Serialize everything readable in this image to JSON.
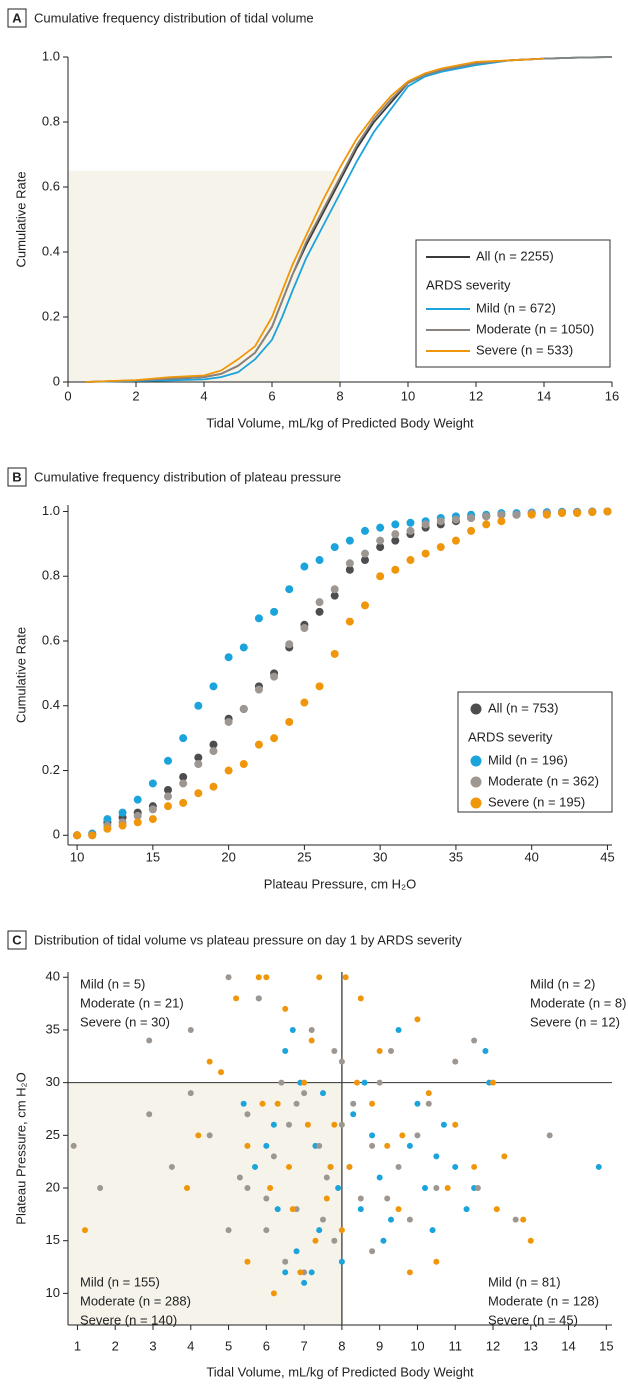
{
  "chart_data": [
    {
      "type": "line",
      "panel": "A",
      "title": "Cumulative frequency distribution of tidal volume",
      "x_label": "Tidal Volume, mL/kg of Predicted Body Weight",
      "y_label": "Cumulative Rate",
      "xlim": [
        0,
        16
      ],
      "ylim": [
        0,
        1
      ],
      "xticks": [
        0,
        2,
        4,
        6,
        8,
        10,
        12,
        14,
        16
      ],
      "yticks": [
        0,
        0.2,
        0.4,
        0.6,
        0.8,
        {
          "value": 1,
          "label": "1.0"
        }
      ],
      "shade": {
        "x": [
          0,
          8
        ],
        "y": [
          0,
          0.65
        ],
        "color": "#f6f3ea"
      },
      "legend": "lower right",
      "legend_title": "ARDS severity",
      "x": [
        0.5,
        2,
        3,
        4,
        4.5,
        5,
        5.5,
        6,
        6.3,
        6.6,
        7,
        7.5,
        8,
        8.5,
        9,
        9.5,
        10,
        10.5,
        11,
        12,
        13,
        14,
        15,
        16
      ],
      "series": [
        {
          "name": "All (n = 2255)",
          "color": "#3a3a3c",
          "values": [
            0,
            0.005,
            0.01,
            0.015,
            0.025,
            0.05,
            0.09,
            0.17,
            0.25,
            0.33,
            0.42,
            0.52,
            0.62,
            0.72,
            0.8,
            0.86,
            0.92,
            0.945,
            0.96,
            0.98,
            0.99,
            0.995,
            0.998,
            1
          ]
        },
        {
          "name": "Mild (n = 672)",
          "color": "#1ba3dc",
          "values": [
            0,
            0.003,
            0.005,
            0.008,
            0.015,
            0.03,
            0.07,
            0.13,
            0.2,
            0.28,
            0.38,
            0.48,
            0.58,
            0.68,
            0.77,
            0.84,
            0.91,
            0.94,
            0.955,
            0.975,
            0.99,
            0.995,
            0.998,
            1
          ]
        },
        {
          "name": "Moderate (n = 1050)",
          "color": "#8a837c",
          "values": [
            0,
            0.005,
            0.01,
            0.015,
            0.025,
            0.05,
            0.09,
            0.17,
            0.25,
            0.33,
            0.43,
            0.53,
            0.63,
            0.73,
            0.81,
            0.87,
            0.92,
            0.945,
            0.96,
            0.98,
            0.99,
            0.995,
            0.998,
            1
          ]
        },
        {
          "name": "Severe (n = 533)",
          "color": "#f0960a",
          "values": [
            0,
            0.006,
            0.015,
            0.02,
            0.035,
            0.07,
            0.11,
            0.2,
            0.28,
            0.36,
            0.45,
            0.56,
            0.66,
            0.75,
            0.82,
            0.88,
            0.925,
            0.95,
            0.965,
            0.985,
            0.99,
            0.995,
            null,
            null
          ]
        }
      ]
    },
    {
      "type": "scatter",
      "panel": "B",
      "title": "Cumulative frequency distribution of plateau pressure",
      "x_label": "Plateau Pressure, cm H₂O",
      "y_label": "Cumulative Rate",
      "xlim": [
        9.4,
        45.3
      ],
      "ylim": [
        -0.03,
        1.02
      ],
      "xticks": [
        10,
        15,
        20,
        25,
        30,
        35,
        40,
        45
      ],
      "yticks": [
        0,
        0.2,
        0.4,
        0.6,
        0.8,
        {
          "value": 1,
          "label": "1.0"
        }
      ],
      "legend": "lower right",
      "legend_title": "ARDS severity",
      "x": [
        10,
        11,
        12,
        13,
        14,
        15,
        16,
        17,
        18,
        19,
        20,
        21,
        22,
        23,
        24,
        25,
        26,
        27,
        28,
        29,
        30,
        31,
        32,
        33,
        34,
        35,
        36,
        37,
        38,
        39,
        40,
        41,
        42,
        43,
        44,
        45
      ],
      "series": [
        {
          "name": "All (n = 753)",
          "color": "#4d4d4f",
          "values": [
            0,
            0.005,
            0.04,
            0.055,
            0.07,
            0.09,
            0.14,
            0.18,
            0.24,
            0.28,
            0.36,
            0.39,
            0.46,
            0.5,
            0.58,
            0.65,
            0.69,
            0.74,
            0.82,
            0.85,
            0.89,
            0.91,
            0.93,
            0.95,
            0.96,
            0.97,
            0.98,
            0.985,
            0.99,
            0.99,
            0.995,
            0.995,
            0.997,
            0.998,
            0.999,
            1
          ]
        },
        {
          "name": "Mild (n = 196)",
          "color": "#1ba3dc",
          "values": [
            0,
            0.005,
            0.05,
            0.07,
            0.11,
            0.16,
            0.23,
            0.3,
            0.4,
            0.46,
            0.55,
            0.58,
            0.67,
            0.69,
            0.76,
            0.83,
            0.85,
            0.89,
            0.91,
            0.94,
            0.95,
            0.96,
            0.965,
            0.97,
            0.98,
            0.985,
            0.99,
            0.99,
            0.995,
            0.995,
            0.997,
            0.998,
            0.999,
            0.999,
            1,
            1
          ]
        },
        {
          "name": "Moderate (n = 362)",
          "color": "#9e9690",
          "values": [
            0,
            0,
            0.03,
            0.04,
            0.06,
            0.08,
            0.12,
            0.16,
            0.22,
            0.26,
            0.35,
            0.39,
            0.45,
            0.49,
            0.59,
            0.64,
            0.72,
            0.76,
            0.84,
            0.87,
            0.91,
            0.93,
            0.94,
            0.96,
            0.97,
            0.975,
            0.98,
            0.985,
            0.99,
            0.99,
            0.995,
            0.995,
            0.997,
            0.998,
            0.999,
            1
          ]
        },
        {
          "name": "Severe (n = 195)",
          "color": "#f0960a",
          "values": [
            0,
            0,
            0.02,
            0.03,
            0.04,
            0.05,
            0.09,
            0.1,
            0.13,
            0.15,
            0.2,
            0.22,
            0.28,
            0.3,
            0.35,
            0.41,
            0.46,
            0.56,
            0.66,
            0.71,
            0.8,
            0.82,
            0.85,
            0.87,
            0.89,
            0.91,
            0.94,
            0.96,
            0.97,
            null,
            0.99,
            0.99,
            0.995,
            0.995,
            0.998,
            1
          ]
        }
      ]
    },
    {
      "type": "scatter",
      "panel": "C",
      "title": "Distribution of tidal volume vs plateau pressure on day 1 by ARDS severity",
      "x_label": "Tidal Volume, mL/kg of Predicted Body Weight",
      "y_label": "Plateau Pressure, cm H₂O",
      "xlim": [
        0.75,
        15.15
      ],
      "ylim": [
        7,
        40.5
      ],
      "xticks": [
        1,
        2,
        3,
        4,
        5,
        6,
        7,
        8,
        9,
        10,
        11,
        12,
        13,
        14,
        15
      ],
      "yticks": [
        10,
        15,
        20,
        25,
        30,
        35,
        40
      ],
      "shade": {
        "x": [
          0.75,
          8
        ],
        "y": [
          7,
          30
        ],
        "color": "#f6f3ea"
      },
      "threshold_lines": {
        "x": 8,
        "y": 30
      },
      "quadrant_labels": [
        {
          "corner": "top-left",
          "labels": [
            "Mild (n = 5)",
            "Moderate (n = 21)",
            "Severe (n = 30)"
          ]
        },
        {
          "corner": "top-right",
          "labels": [
            "Mild (n = 2)",
            "Moderate (n = 8)",
            "Severe (n = 12)"
          ]
        },
        {
          "corner": "bottom-left",
          "labels": [
            "Mild (n = 155)",
            "Moderate (n = 288)",
            "Severe (n = 140)"
          ]
        },
        {
          "corner": "bottom-right",
          "labels": [
            "Mild (n = 81)",
            "Moderate (n = 128)",
            "Severe (n = 45)"
          ]
        }
      ],
      "series": [
        {
          "name": "Mild",
          "color": "#1ba3dc",
          "x": [
            5.8,
            6.5,
            6.7,
            5.4,
            6,
            6.3,
            6.5,
            6.8,
            7,
            7.2,
            7.4,
            7.7,
            7.9,
            8.3,
            8.6,
            8.8,
            9,
            9.3,
            9.5,
            9.8,
            10,
            10.2,
            10.5,
            10.7,
            11,
            11.3,
            11.5,
            11.8,
            11.9,
            14.8,
            6.2,
            7.5,
            8,
            5.7,
            6.9,
            9.1,
            10.4,
            8.5,
            7.3
          ],
          "y": [
            38,
            33,
            35,
            28,
            24,
            18,
            12,
            14,
            11,
            12,
            16,
            22,
            20,
            27,
            30,
            25,
            21,
            17,
            35,
            24,
            28,
            20,
            23,
            26,
            22,
            18,
            20,
            33,
            30,
            22,
            26,
            29,
            13,
            22,
            30,
            15,
            16,
            18,
            24
          ]
        },
        {
          "name": "Moderate",
          "color": "#9e9690",
          "x": [
            0.9,
            1.6,
            2.9,
            2.9,
            3.5,
            4,
            4,
            5,
            5,
            5.3,
            5.5,
            5.8,
            6,
            6.2,
            6.4,
            6.6,
            6.8,
            7,
            7.2,
            7.4,
            7.6,
            7.8,
            8,
            8,
            8.3,
            8.5,
            8.8,
            9,
            9.3,
            9.5,
            9.8,
            10,
            10.3,
            10.5,
            11,
            11.5,
            11.6,
            12.6,
            13.5,
            6.5,
            7,
            5.5,
            6,
            7.5,
            8.2,
            9.2,
            8.8,
            6.8,
            7.8,
            4.5
          ],
          "y": [
            24,
            20,
            27,
            34,
            22,
            29,
            35,
            40,
            16,
            21,
            27,
            38,
            19,
            23,
            30,
            26,
            18,
            29,
            35,
            24,
            21,
            15,
            26,
            32,
            28,
            19,
            24,
            30,
            33,
            22,
            17,
            25,
            28,
            20,
            32,
            34,
            20,
            17,
            25,
            13,
            12,
            20,
            16,
            17,
            22,
            19,
            14,
            28,
            33,
            25
          ]
        },
        {
          "name": "Severe",
          "color": "#f0960a",
          "x": [
            1.2,
            3.9,
            4.2,
            4.5,
            4.8,
            5.2,
            5.5,
            5.8,
            6,
            6.2,
            6.3,
            6.5,
            6.6,
            6.9,
            7,
            7.2,
            7.4,
            7.6,
            7.8,
            8,
            8.1,
            8.2,
            8.5,
            8.8,
            9,
            9.2,
            9.5,
            9.8,
            10,
            10.3,
            10.5,
            10.8,
            11,
            11.5,
            12,
            12.1,
            12.3,
            12.8,
            13,
            5.5,
            6.7,
            7.3,
            8.4,
            5.9,
            7.1,
            9.6,
            6.1,
            7.7
          ],
          "y": [
            16,
            20,
            25,
            32,
            31,
            38,
            13,
            40,
            40,
            10,
            28,
            37,
            22,
            12,
            30,
            34,
            40,
            19,
            26,
            16,
            40,
            22,
            38,
            28,
            33,
            24,
            18,
            12,
            36,
            29,
            13,
            20,
            26,
            22,
            30,
            18,
            23,
            17,
            15,
            24,
            18,
            15,
            30,
            28,
            26,
            25,
            20,
            22
          ]
        }
      ]
    }
  ]
}
